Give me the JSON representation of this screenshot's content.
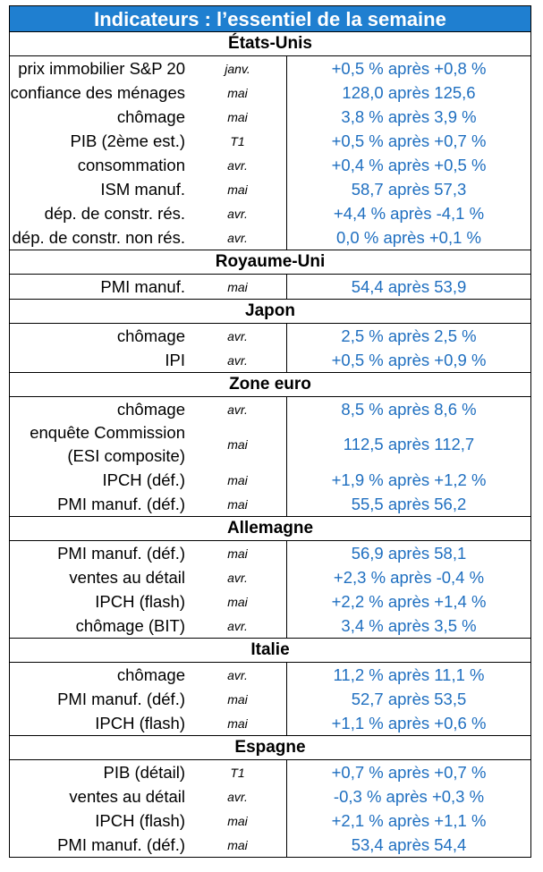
{
  "title": "Indicateurs : l’essentiel de la semaine",
  "sections": [
    {
      "name": "États-Unis",
      "rows": [
        {
          "label": "prix immobilier S&P 20",
          "period": "janv.",
          "value": "+0,5 % après +0,8 %"
        },
        {
          "label": "confiance des ménages",
          "period": "mai",
          "value": "128,0 après 125,6"
        },
        {
          "label": "chômage",
          "period": "mai",
          "value": "3,8 % après 3,9 %"
        },
        {
          "label": "PIB (2ème est.)",
          "period": "T1",
          "value": "+0,5 % après +0,7 %"
        },
        {
          "label": "consommation",
          "period": "avr.",
          "value": "+0,4 % après +0,5 %"
        },
        {
          "label": "ISM manuf.",
          "period": "mai",
          "value": "58,7 après 57,3"
        },
        {
          "label": "dép. de constr. rés.",
          "period": "avr.",
          "value": "+4,4 % après -4,1 %"
        },
        {
          "label": "dép. de constr. non rés.",
          "period": "avr.",
          "value": "0,0 % après +0,1 %"
        }
      ]
    },
    {
      "name": "Royaume-Uni",
      "rows": [
        {
          "label": "PMI manuf.",
          "period": "mai",
          "value": "54,4 après 53,9"
        }
      ]
    },
    {
      "name": "Japon",
      "rows": [
        {
          "label": "chômage",
          "period": "avr.",
          "value": "2,5 % après 2,5 %"
        },
        {
          "label": "IPI",
          "period": "avr.",
          "value": "+0,5 % après +0,9 %"
        }
      ]
    },
    {
      "name": "Zone euro",
      "rows": [
        {
          "label": "chômage",
          "period": "avr.",
          "value": "8,5 % après 8,6 %"
        },
        {
          "label": "enquête Commission",
          "label2": "(ESI composite)",
          "period": "mai",
          "value": "112,5 après 112,7"
        },
        {
          "label": "IPCH (déf.)",
          "period": "mai",
          "value": "+1,9 % après +1,2 %"
        },
        {
          "label": "PMI manuf. (déf.)",
          "period": "mai",
          "value": "55,5 après 56,2"
        }
      ]
    },
    {
      "name": "Allemagne",
      "rows": [
        {
          "label": "PMI manuf. (déf.)",
          "period": "mai",
          "value": "56,9 après 58,1"
        },
        {
          "label": "ventes au détail",
          "period": "avr.",
          "value": "+2,3 % après -0,4 %"
        },
        {
          "label": "IPCH (flash)",
          "period": "mai",
          "value": "+2,2 % après +1,4 %"
        },
        {
          "label": "chômage (BIT)",
          "period": "avr.",
          "value": "3,4 % après 3,5 %"
        }
      ]
    },
    {
      "name": "Italie",
      "rows": [
        {
          "label": "chômage",
          "period": "avr.",
          "value": "11,2 % après 11,1 %"
        },
        {
          "label": "PMI manuf. (déf.)",
          "period": "mai",
          "value": "52,7 après 53,5"
        },
        {
          "label": "IPCH (flash)",
          "period": "mai",
          "value": "+1,1 % après +0,6 %"
        }
      ]
    },
    {
      "name": "Espagne",
      "rows": [
        {
          "label": "PIB (détail)",
          "period": "T1",
          "value": "+0,7 % après +0,7 %"
        },
        {
          "label": "ventes au détail",
          "period": "avr.",
          "value": "-0,3 % après +0,3 %"
        },
        {
          "label": "IPCH (flash)",
          "period": "mai",
          "value": "+2,1 % après +1,1 %"
        },
        {
          "label": "PMI manuf. (déf.)",
          "period": "mai",
          "value": "53,4 après 54,4"
        }
      ]
    }
  ]
}
